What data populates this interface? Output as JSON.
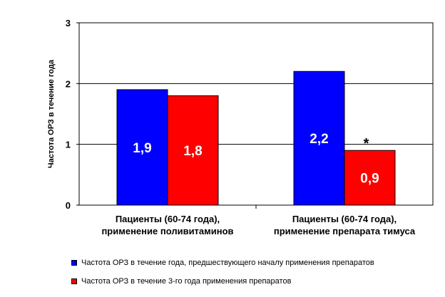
{
  "chart_data": {
    "type": "bar",
    "ylabel": "Частота ОРЗ в течение года",
    "ylim": [
      0,
      3
    ],
    "yticks": [
      "0",
      "1",
      "2",
      "3"
    ],
    "grid": true,
    "legend_position": "bottom",
    "categories": [
      [
        "Пациенты (60-74 года),",
        "применение поливитаминов"
      ],
      [
        "Пациенты (60-74 года),",
        "применение препарата тимуса"
      ]
    ],
    "series": [
      {
        "name": "Частота ОРЗ в течение года, предшествующего началу применения препаратов",
        "color": "#0000ff",
        "values": [
          1.9,
          2.2
        ],
        "labels": [
          "1,9",
          "2,2"
        ]
      },
      {
        "name": "Частота ОРЗ в течение 3-го года применения препаратов",
        "color": "#ff0000",
        "values": [
          1.8,
          0.9
        ],
        "labels": [
          "1,8",
          "0,9"
        ]
      }
    ],
    "annotations": [
      {
        "text": "*",
        "category_index": 1,
        "series_index": 1
      }
    ]
  }
}
